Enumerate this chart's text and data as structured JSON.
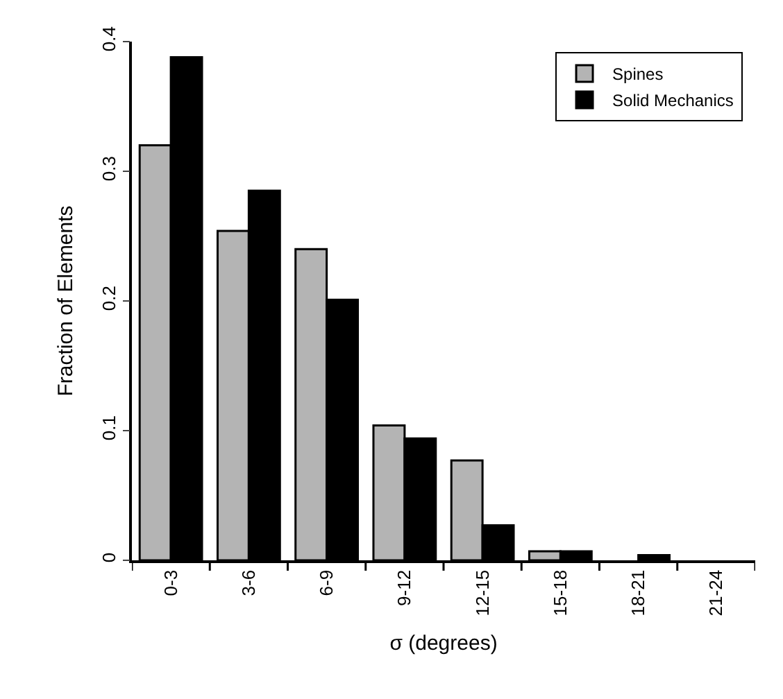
{
  "chart_data": {
    "type": "bar",
    "xlabel": "σ (degrees)",
    "ylabel": "Fraction of Elements",
    "categories": [
      "0-3",
      "3-6",
      "6-9",
      "9-12",
      "12-15",
      "15-18",
      "18-21",
      "21-24"
    ],
    "series": [
      {
        "name": "Spines",
        "color": "#b4b4b4",
        "values": [
          0.32,
          0.254,
          0.24,
          0.104,
          0.077,
          0.007,
          0,
          0
        ]
      },
      {
        "name": "Solid Mechanics",
        "color": "#000000",
        "values": [
          0.388,
          0.285,
          0.201,
          0.094,
          0.027,
          0.007,
          0.004,
          0
        ]
      }
    ],
    "ylim": [
      0,
      0.4
    ],
    "yticks": [
      0,
      0.1,
      0.2,
      0.3,
      0.4
    ],
    "legend": "top right"
  }
}
